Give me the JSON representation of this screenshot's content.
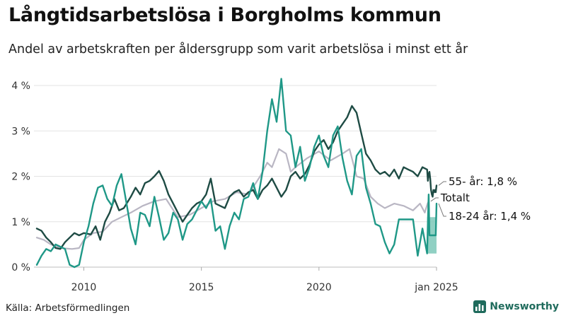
{
  "title": "Långtidsarbetslösa i Borgholms kommun",
  "subtitle": "Andel av arbetskraften per åldersgrupp som varit arbetslösa i minst ett år",
  "source": "Källa: Arbetsförmedlingen",
  "brand": {
    "name": "Newsworthy",
    "icon": "bar-chart-icon",
    "color": "#1f6b5c"
  },
  "chart_data": {
    "type": "line",
    "grid": true,
    "ylim": [
      0,
      4
    ],
    "xlim": [
      2008.0,
      2025.0
    ],
    "y_ticks": [
      {
        "value": 0,
        "label": "0 %"
      },
      {
        "value": 1,
        "label": "1 %"
      },
      {
        "value": 2,
        "label": "2 %"
      },
      {
        "value": 3,
        "label": "3 %"
      },
      {
        "value": 4,
        "label": "4 %"
      }
    ],
    "x_ticks": [
      {
        "value": 2010,
        "label": "2010"
      },
      {
        "value": 2015,
        "label": "2015"
      },
      {
        "value": 2020,
        "label": "2020"
      },
      {
        "value": 2025,
        "label": "jan 2025"
      }
    ],
    "series": [
      {
        "name": "Totalt",
        "label": "Totalt",
        "color": "#b9b6c3",
        "points": [
          [
            2008.0,
            0.65
          ],
          [
            2008.3,
            0.6
          ],
          [
            2008.6,
            0.5
          ],
          [
            2009.0,
            0.42
          ],
          [
            2009.5,
            0.4
          ],
          [
            2009.8,
            0.42
          ],
          [
            2010.0,
            0.6
          ],
          [
            2010.4,
            0.75
          ],
          [
            2010.8,
            0.78
          ],
          [
            2011.2,
            1.0
          ],
          [
            2011.6,
            1.1
          ],
          [
            2012.0,
            1.2
          ],
          [
            2012.5,
            1.35
          ],
          [
            2013.0,
            1.45
          ],
          [
            2013.5,
            1.5
          ],
          [
            2014.0,
            1.1
          ],
          [
            2014.5,
            1.15
          ],
          [
            2015.0,
            1.3
          ],
          [
            2015.5,
            1.45
          ],
          [
            2016.0,
            1.5
          ],
          [
            2016.5,
            1.65
          ],
          [
            2017.0,
            1.6
          ],
          [
            2017.5,
            2.0
          ],
          [
            2017.8,
            2.3
          ],
          [
            2018.0,
            2.2
          ],
          [
            2018.3,
            2.6
          ],
          [
            2018.6,
            2.5
          ],
          [
            2018.8,
            2.1
          ],
          [
            2019.0,
            2.2
          ],
          [
            2019.5,
            2.4
          ],
          [
            2020.0,
            2.55
          ],
          [
            2020.5,
            2.35
          ],
          [
            2021.0,
            2.5
          ],
          [
            2021.3,
            2.6
          ],
          [
            2021.6,
            2.0
          ],
          [
            2021.9,
            1.95
          ],
          [
            2022.2,
            1.55
          ],
          [
            2022.5,
            1.4
          ],
          [
            2022.8,
            1.3
          ],
          [
            2023.2,
            1.4
          ],
          [
            2023.6,
            1.35
          ],
          [
            2024.0,
            1.25
          ],
          [
            2024.3,
            1.4
          ],
          [
            2024.5,
            1.2
          ],
          [
            2024.7,
            1.4
          ],
          [
            2025.0,
            1.45
          ]
        ]
      },
      {
        "name": "55- år",
        "label": "55- år: 1,8 %",
        "color": "#1e4b44",
        "points": [
          [
            2008.0,
            0.85
          ],
          [
            2008.2,
            0.8
          ],
          [
            2008.4,
            0.65
          ],
          [
            2008.6,
            0.55
          ],
          [
            2008.8,
            0.42
          ],
          [
            2009.0,
            0.4
          ],
          [
            2009.2,
            0.55
          ],
          [
            2009.4,
            0.65
          ],
          [
            2009.6,
            0.75
          ],
          [
            2009.8,
            0.7
          ],
          [
            2010.0,
            0.75
          ],
          [
            2010.3,
            0.72
          ],
          [
            2010.5,
            0.9
          ],
          [
            2010.7,
            0.6
          ],
          [
            2010.9,
            1.0
          ],
          [
            2011.1,
            1.2
          ],
          [
            2011.3,
            1.5
          ],
          [
            2011.5,
            1.25
          ],
          [
            2011.7,
            1.3
          ],
          [
            2012.0,
            1.55
          ],
          [
            2012.2,
            1.75
          ],
          [
            2012.4,
            1.6
          ],
          [
            2012.6,
            1.85
          ],
          [
            2012.8,
            1.9
          ],
          [
            2013.0,
            2.0
          ],
          [
            2013.2,
            2.12
          ],
          [
            2013.4,
            1.9
          ],
          [
            2013.6,
            1.6
          ],
          [
            2013.8,
            1.4
          ],
          [
            2014.0,
            1.2
          ],
          [
            2014.2,
            1.0
          ],
          [
            2014.4,
            1.15
          ],
          [
            2014.6,
            1.3
          ],
          [
            2014.8,
            1.4
          ],
          [
            2015.0,
            1.45
          ],
          [
            2015.2,
            1.6
          ],
          [
            2015.4,
            1.95
          ],
          [
            2015.6,
            1.4
          ],
          [
            2015.8,
            1.35
          ],
          [
            2016.0,
            1.3
          ],
          [
            2016.2,
            1.55
          ],
          [
            2016.4,
            1.65
          ],
          [
            2016.6,
            1.7
          ],
          [
            2016.8,
            1.55
          ],
          [
            2017.0,
            1.65
          ],
          [
            2017.2,
            1.7
          ],
          [
            2017.4,
            1.5
          ],
          [
            2017.6,
            1.7
          ],
          [
            2017.8,
            1.8
          ],
          [
            2018.0,
            1.95
          ],
          [
            2018.2,
            1.75
          ],
          [
            2018.4,
            1.55
          ],
          [
            2018.6,
            1.7
          ],
          [
            2018.8,
            2.0
          ],
          [
            2019.0,
            2.1
          ],
          [
            2019.2,
            1.95
          ],
          [
            2019.4,
            2.05
          ],
          [
            2019.6,
            2.25
          ],
          [
            2019.8,
            2.55
          ],
          [
            2020.0,
            2.7
          ],
          [
            2020.2,
            2.8
          ],
          [
            2020.4,
            2.6
          ],
          [
            2020.6,
            2.75
          ],
          [
            2020.8,
            3.0
          ],
          [
            2021.0,
            3.15
          ],
          [
            2021.2,
            3.3
          ],
          [
            2021.4,
            3.55
          ],
          [
            2021.6,
            3.4
          ],
          [
            2021.8,
            2.95
          ],
          [
            2022.0,
            2.5
          ],
          [
            2022.2,
            2.35
          ],
          [
            2022.4,
            2.15
          ],
          [
            2022.6,
            2.05
          ],
          [
            2022.8,
            2.1
          ],
          [
            2023.0,
            2.0
          ],
          [
            2023.2,
            2.15
          ],
          [
            2023.4,
            1.95
          ],
          [
            2023.6,
            2.2
          ],
          [
            2023.8,
            2.15
          ],
          [
            2024.0,
            2.1
          ],
          [
            2024.2,
            2.0
          ],
          [
            2024.4,
            2.2
          ],
          [
            2024.6,
            2.15
          ],
          [
            2024.8,
            1.9
          ],
          [
            2025.0,
            2.05
          ],
          [
            2025.2,
            2.1
          ],
          [
            2025.4,
            1.95
          ],
          [
            2025.6,
            1.7
          ],
          [
            2025.8,
            1.6
          ],
          [
            2026.0,
            1.55
          ],
          [
            2026.2,
            1.7
          ],
          [
            2026.4,
            1.65
          ],
          [
            2026.6,
            1.7
          ],
          [
            2026.8,
            1.65
          ],
          [
            2027.0,
            1.8
          ]
        ]
      },
      {
        "name": "18-24 år",
        "label": "18-24 år: 1,4 %",
        "color": "#1f9887",
        "points": [
          [
            2008.0,
            0.05
          ],
          [
            2008.2,
            0.25
          ],
          [
            2008.4,
            0.4
          ],
          [
            2008.6,
            0.35
          ],
          [
            2008.8,
            0.5
          ],
          [
            2009.0,
            0.45
          ],
          [
            2009.2,
            0.4
          ],
          [
            2009.4,
            0.05
          ],
          [
            2009.6,
            0.0
          ],
          [
            2009.8,
            0.05
          ],
          [
            2010.0,
            0.55
          ],
          [
            2010.2,
            0.9
          ],
          [
            2010.4,
            1.4
          ],
          [
            2010.6,
            1.75
          ],
          [
            2010.8,
            1.8
          ],
          [
            2011.0,
            1.5
          ],
          [
            2011.2,
            1.35
          ],
          [
            2011.4,
            1.8
          ],
          [
            2011.6,
            2.05
          ],
          [
            2011.8,
            1.45
          ],
          [
            2012.0,
            0.85
          ],
          [
            2012.2,
            0.5
          ],
          [
            2012.4,
            1.2
          ],
          [
            2012.6,
            1.15
          ],
          [
            2012.8,
            0.9
          ],
          [
            2013.0,
            1.55
          ],
          [
            2013.2,
            1.1
          ],
          [
            2013.4,
            0.6
          ],
          [
            2013.6,
            0.75
          ],
          [
            2013.8,
            1.2
          ],
          [
            2014.0,
            1.05
          ],
          [
            2014.2,
            0.6
          ],
          [
            2014.4,
            0.95
          ],
          [
            2014.6,
            1.05
          ],
          [
            2014.8,
            1.25
          ],
          [
            2015.0,
            1.45
          ],
          [
            2015.2,
            1.3
          ],
          [
            2015.4,
            1.5
          ],
          [
            2015.6,
            0.8
          ],
          [
            2015.8,
            0.9
          ],
          [
            2016.0,
            0.4
          ],
          [
            2016.2,
            0.9
          ],
          [
            2016.4,
            1.2
          ],
          [
            2016.6,
            1.05
          ],
          [
            2016.8,
            1.5
          ],
          [
            2017.0,
            1.55
          ],
          [
            2017.2,
            1.85
          ],
          [
            2017.4,
            1.5
          ],
          [
            2017.6,
            2.1
          ],
          [
            2017.8,
            3.0
          ],
          [
            2018.0,
            3.7
          ],
          [
            2018.2,
            3.2
          ],
          [
            2018.4,
            4.15
          ],
          [
            2018.6,
            3.0
          ],
          [
            2018.8,
            2.9
          ],
          [
            2019.0,
            2.2
          ],
          [
            2019.2,
            2.65
          ],
          [
            2019.4,
            1.9
          ],
          [
            2019.6,
            2.2
          ],
          [
            2019.8,
            2.65
          ],
          [
            2020.0,
            2.9
          ],
          [
            2020.2,
            2.45
          ],
          [
            2020.4,
            2.2
          ],
          [
            2020.6,
            2.9
          ],
          [
            2020.8,
            3.1
          ],
          [
            2021.0,
            2.4
          ],
          [
            2021.2,
            1.9
          ],
          [
            2021.4,
            1.6
          ],
          [
            2021.6,
            2.45
          ],
          [
            2021.8,
            2.6
          ],
          [
            2022.0,
            1.75
          ],
          [
            2022.2,
            1.4
          ],
          [
            2022.4,
            0.95
          ],
          [
            2022.6,
            0.9
          ],
          [
            2022.8,
            0.55
          ],
          [
            2023.0,
            0.3
          ],
          [
            2023.2,
            0.5
          ],
          [
            2023.4,
            1.05
          ],
          [
            2023.6,
            1.05
          ],
          [
            2023.8,
            1.05
          ],
          [
            2024.0,
            1.05
          ],
          [
            2024.2,
            0.25
          ],
          [
            2024.4,
            0.85
          ],
          [
            2024.6,
            0.3
          ],
          [
            2024.8,
            1.0
          ],
          [
            2025.0,
            1.6
          ],
          [
            2025.2,
            0.7
          ],
          [
            2025.6,
            0.7
          ],
          [
            2026.0,
            0.7
          ],
          [
            2026.4,
            0.7
          ],
          [
            2026.8,
            0.7
          ],
          [
            2027.0,
            1.4
          ]
        ]
      }
    ],
    "uncertainty_band": {
      "series": "18-24 år",
      "color": "#7dc8b8",
      "lower": [
        [
          2024.6,
          0.3
        ],
        [
          2025.2,
          0.3
        ],
        [
          2027.0,
          0.3
        ]
      ],
      "upper": [
        [
          2024.6,
          1.1
        ],
        [
          2025.2,
          1.1
        ],
        [
          2027.0,
          1.1
        ]
      ]
    }
  }
}
